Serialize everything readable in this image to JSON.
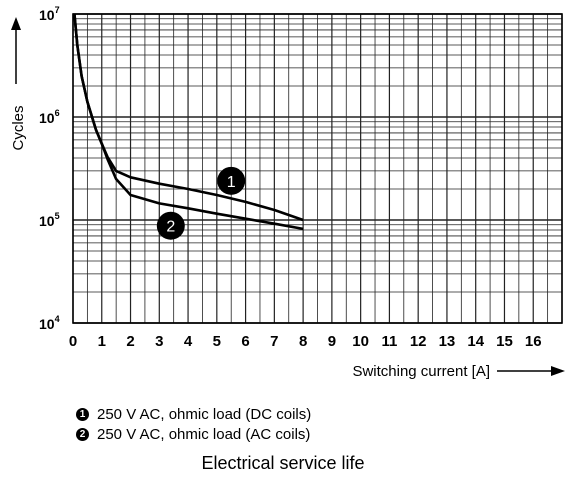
{
  "chart_data": {
    "type": "line",
    "title": "Electrical service life",
    "xlabel": "Switching current [A]",
    "ylabel": "Cycles",
    "y_scale": "log",
    "xlim": [
      0,
      17
    ],
    "ylim": [
      10000,
      10000000
    ],
    "x_ticks": [
      "0",
      "1",
      "2",
      "3",
      "4",
      "5",
      "6",
      "7",
      "8",
      "9",
      "10",
      "11",
      "12",
      "13",
      "14",
      "15",
      "16"
    ],
    "y_ticks": [
      {
        "base": "10",
        "exp": "4",
        "value": 10000
      },
      {
        "base": "10",
        "exp": "5",
        "value": 100000
      },
      {
        "base": "10",
        "exp": "6",
        "value": 1000000
      },
      {
        "base": "10",
        "exp": "7",
        "value": 10000000
      }
    ],
    "grid": true,
    "series": [
      {
        "marker": "1",
        "name": "250 V AC, ohmic load (DC coils)",
        "color": "#000000",
        "points": [
          [
            0.05,
            10000000
          ],
          [
            0.15,
            5000000
          ],
          [
            0.3,
            2500000
          ],
          [
            0.5,
            1400000
          ],
          [
            0.8,
            750000
          ],
          [
            1,
            550000
          ],
          [
            1.2,
            410000
          ],
          [
            1.5,
            300000
          ],
          [
            2,
            260000
          ],
          [
            3,
            225000
          ],
          [
            4,
            200000
          ],
          [
            5,
            175000
          ],
          [
            6,
            150000
          ],
          [
            7,
            125000
          ],
          [
            8,
            100000
          ]
        ]
      },
      {
        "marker": "2",
        "name": "250 V AC, ohmic load (AC coils)",
        "color": "#000000",
        "points": [
          [
            0.05,
            10000000
          ],
          [
            0.15,
            5000000
          ],
          [
            0.3,
            2500000
          ],
          [
            0.5,
            1400000
          ],
          [
            0.8,
            750000
          ],
          [
            1,
            550000
          ],
          [
            1.2,
            390000
          ],
          [
            1.5,
            250000
          ],
          [
            2,
            175000
          ],
          [
            3,
            145000
          ],
          [
            4,
            130000
          ],
          [
            5,
            115000
          ],
          [
            6,
            103000
          ],
          [
            7,
            92000
          ],
          [
            8,
            82000
          ]
        ]
      }
    ]
  }
}
